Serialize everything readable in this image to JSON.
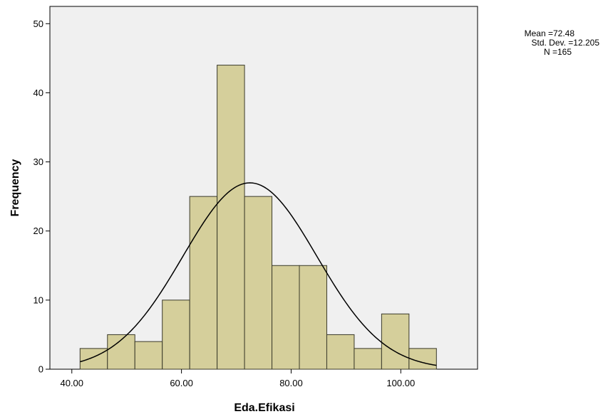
{
  "chart_data": {
    "type": "histogram",
    "xlabel": "Eda.Efikasi",
    "ylabel": "Frequency",
    "xlim": [
      36,
      114
    ],
    "ylim": [
      0,
      52.5
    ],
    "x_ticks": [
      {
        "value": 40,
        "label": "40.00"
      },
      {
        "value": 60,
        "label": "60.00"
      },
      {
        "value": 80,
        "label": "80.00"
      },
      {
        "value": 100,
        "label": "100.00"
      }
    ],
    "y_ticks": [
      {
        "value": 0,
        "label": "0"
      },
      {
        "value": 10,
        "label": "10"
      },
      {
        "value": 20,
        "label": "20"
      },
      {
        "value": 30,
        "label": "30"
      },
      {
        "value": 40,
        "label": "40"
      },
      {
        "value": 50,
        "label": "50"
      }
    ],
    "bins": [
      {
        "x0": 41.5,
        "x1": 46.5,
        "count": 3
      },
      {
        "x0": 46.5,
        "x1": 51.5,
        "count": 5
      },
      {
        "x0": 51.5,
        "x1": 56.5,
        "count": 4
      },
      {
        "x0": 56.5,
        "x1": 61.5,
        "count": 10
      },
      {
        "x0": 61.5,
        "x1": 66.5,
        "count": 25
      },
      {
        "x0": 66.5,
        "x1": 71.5,
        "count": 44
      },
      {
        "x0": 71.5,
        "x1": 76.5,
        "count": 25
      },
      {
        "x0": 76.5,
        "x1": 81.5,
        "count": 15
      },
      {
        "x0": 81.5,
        "x1": 86.5,
        "count": 15
      },
      {
        "x0": 86.5,
        "x1": 91.5,
        "count": 5
      },
      {
        "x0": 91.5,
        "x1": 96.5,
        "count": 3
      },
      {
        "x0": 96.5,
        "x1": 101.5,
        "count": 8
      },
      {
        "x0": 101.5,
        "x1": 106.5,
        "count": 3
      }
    ],
    "normal_curve": {
      "mean": 72.48,
      "sd": 12.205,
      "n": 165,
      "bin_width": 5
    },
    "stats": [
      "Mean =72.48",
      "Std. Dev. =12.205",
      "N =165"
    ],
    "colors": {
      "bar_fill": "#d5cf9b",
      "bar_stroke": "#3a3a2a",
      "plot_background": "#f0f0f0",
      "curve": "#000000"
    }
  }
}
